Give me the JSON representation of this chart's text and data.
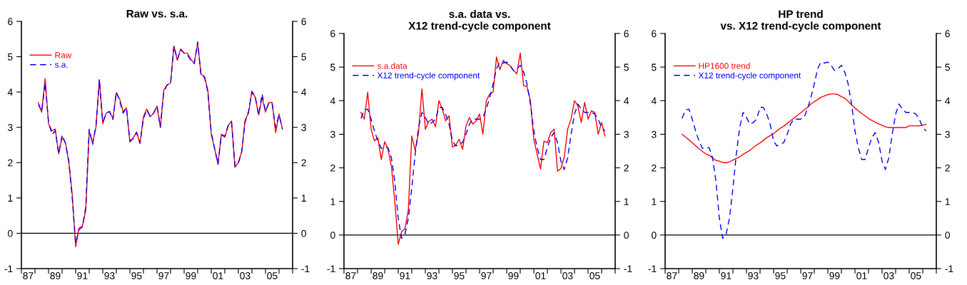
{
  "chart_data": [
    {
      "type": "line",
      "title": "Raw vs. s.a.",
      "x": [
        "1988-04",
        "1988-07",
        "1988-10",
        "1989-01",
        "1989-04",
        "1989-07",
        "1989-10",
        "1990-01",
        "1990-04",
        "1990-07",
        "1990-10",
        "1991-01",
        "1991-04",
        "1991-07",
        "1991-10",
        "1992-01",
        "1992-04",
        "1992-07",
        "1992-10",
        "1993-01",
        "1993-04",
        "1993-07",
        "1993-10",
        "1994-01",
        "1994-04",
        "1994-07",
        "1994-10",
        "1995-01",
        "1995-04",
        "1995-07",
        "1995-10",
        "1996-01",
        "1996-04",
        "1996-07",
        "1996-10",
        "1997-01",
        "1997-04",
        "1997-07",
        "1997-10",
        "1998-01",
        "1998-04",
        "1998-07",
        "1998-10",
        "1999-01",
        "1999-04",
        "1999-07",
        "1999-10",
        "2000-01",
        "2000-04",
        "2000-07",
        "2000-10",
        "2001-01",
        "2001-04",
        "2001-07",
        "2001-10",
        "2002-01",
        "2002-04",
        "2002-07",
        "2002-10",
        "2003-01",
        "2003-04",
        "2003-07",
        "2003-10",
        "2004-01",
        "2004-04",
        "2004-07",
        "2004-10",
        "2005-01",
        "2005-04",
        "2005-07",
        "2005-10",
        "2006-01",
        "2006-04"
      ],
      "series": [
        {
          "name": "Raw",
          "color": "#ff0000",
          "line_style": "solid",
          "values": [
            3.7,
            3.43,
            4.38,
            3.1,
            2.9,
            2.95,
            2.25,
            2.72,
            2.57,
            2.0,
            1.1,
            -0.38,
            0.15,
            0.2,
            0.65,
            2.9,
            2.55,
            3.0,
            4.35,
            3.1,
            3.4,
            3.45,
            3.25,
            3.98,
            3.8,
            3.45,
            3.55,
            2.58,
            2.7,
            2.87,
            2.55,
            3.3,
            3.52,
            3.3,
            3.4,
            3.6,
            3.0,
            4.05,
            4.2,
            4.25,
            5.3,
            4.9,
            5.22,
            5.1,
            5.1,
            4.92,
            4.82,
            5.38,
            4.5,
            4.45,
            4.05,
            2.8,
            2.4,
            1.95,
            2.8,
            2.72,
            3.05,
            3.18,
            1.87,
            2.0,
            2.3,
            3.2,
            3.4,
            4.03,
            3.85,
            3.35,
            3.85,
            3.43,
            3.7,
            3.7,
            2.85,
            3.38,
            2.95
          ]
        },
        {
          "name": "s.a.",
          "color": "#0000ff",
          "line_style": "dashed",
          "values": [
            3.65,
            3.45,
            4.25,
            3.15,
            2.8,
            2.9,
            2.25,
            2.78,
            2.55,
            2.05,
            1.0,
            -0.28,
            0.1,
            0.18,
            0.75,
            2.95,
            2.52,
            3.05,
            4.35,
            3.15,
            3.38,
            3.45,
            3.22,
            4.0,
            3.75,
            3.4,
            3.55,
            2.62,
            2.68,
            2.85,
            2.55,
            3.25,
            3.5,
            3.3,
            3.4,
            3.6,
            3.0,
            4.0,
            4.2,
            4.25,
            5.3,
            4.92,
            5.2,
            5.1,
            5.05,
            4.9,
            4.8,
            5.42,
            4.45,
            4.42,
            4.0,
            2.85,
            2.4,
            1.97,
            2.8,
            2.75,
            3.05,
            3.15,
            1.9,
            1.98,
            2.32,
            3.15,
            3.45,
            4.0,
            3.85,
            3.35,
            3.95,
            3.45,
            3.7,
            3.65,
            3.0,
            3.35,
            2.95
          ]
        }
      ],
      "xlim": [
        "1987",
        "2007"
      ],
      "xticks": [
        {
          "value": "1987",
          "label": null
        },
        {
          "value": "1987-07",
          "label": "87"
        },
        {
          "value": "1988",
          "label": null
        },
        {
          "value": "1989",
          "label": null
        },
        {
          "value": "1989-07",
          "label": "89"
        },
        {
          "value": "1990",
          "label": null
        },
        {
          "value": "1991",
          "label": null
        },
        {
          "value": "1991-07",
          "label": "91"
        },
        {
          "value": "1992",
          "label": null
        },
        {
          "value": "1993",
          "label": null
        },
        {
          "value": "1993-07",
          "label": "93"
        },
        {
          "value": "1994",
          "label": null
        },
        {
          "value": "1995",
          "label": null
        },
        {
          "value": "1995-07",
          "label": "95"
        },
        {
          "value": "1996",
          "label": null
        },
        {
          "value": "1997",
          "label": null
        },
        {
          "value": "1997-07",
          "label": "97"
        },
        {
          "value": "1998",
          "label": null
        },
        {
          "value": "1999",
          "label": null
        },
        {
          "value": "1999-07",
          "label": "99"
        },
        {
          "value": "2000",
          "label": null
        },
        {
          "value": "2001",
          "label": null
        },
        {
          "value": "2001-07",
          "label": "01"
        },
        {
          "value": "2002",
          "label": null
        },
        {
          "value": "2003",
          "label": null
        },
        {
          "value": "2003-07",
          "label": "03"
        },
        {
          "value": "2004",
          "label": null
        },
        {
          "value": "2005",
          "label": null
        },
        {
          "value": "2005-07",
          "label": "05"
        },
        {
          "value": "2006",
          "label": null
        },
        {
          "value": "2007",
          "label": null
        }
      ],
      "ylim": [
        -1,
        6
      ],
      "yticks": [
        -1,
        0,
        1,
        2,
        3,
        4,
        5,
        6
      ],
      "y2lim": [
        -1,
        6
      ],
      "y2ticks": [
        -1,
        0,
        1,
        2,
        3,
        4,
        5,
        6
      ],
      "ref_lines": [
        {
          "axis": "y",
          "value": 0,
          "color": "#000000"
        }
      ],
      "grid": false,
      "legend": "top left",
      "marker": "none"
    },
    {
      "type": "line",
      "title": "s.a. data vs.\nX12 trend-cycle component",
      "x": [
        "1988-04",
        "1988-07",
        "1988-10",
        "1989-01",
        "1989-04",
        "1989-07",
        "1989-10",
        "1990-01",
        "1990-04",
        "1990-07",
        "1990-10",
        "1991-01",
        "1991-04",
        "1991-07",
        "1991-10",
        "1992-01",
        "1992-04",
        "1992-07",
        "1992-10",
        "1993-01",
        "1993-04",
        "1993-07",
        "1993-10",
        "1994-01",
        "1994-04",
        "1994-07",
        "1994-10",
        "1995-01",
        "1995-04",
        "1995-07",
        "1995-10",
        "1996-01",
        "1996-04",
        "1996-07",
        "1996-10",
        "1997-01",
        "1997-04",
        "1997-07",
        "1997-10",
        "1998-01",
        "1998-04",
        "1998-07",
        "1998-10",
        "1999-01",
        "1999-04",
        "1999-07",
        "1999-10",
        "2000-01",
        "2000-04",
        "2000-07",
        "2000-10",
        "2001-01",
        "2001-04",
        "2001-07",
        "2001-10",
        "2002-01",
        "2002-04",
        "2002-07",
        "2002-10",
        "2003-01",
        "2003-04",
        "2003-07",
        "2003-10",
        "2004-01",
        "2004-04",
        "2004-07",
        "2004-10",
        "2005-01",
        "2005-04",
        "2005-07",
        "2005-10",
        "2006-01",
        "2006-04"
      ],
      "series": [
        {
          "name": "s.a.data",
          "color": "#ff0000",
          "line_style": "solid",
          "values": [
            3.65,
            3.45,
            4.25,
            3.15,
            2.8,
            2.9,
            2.25,
            2.78,
            2.55,
            2.05,
            1.0,
            -0.28,
            0.1,
            0.18,
            0.75,
            2.95,
            2.52,
            3.05,
            4.35,
            3.15,
            3.38,
            3.45,
            3.22,
            4.0,
            3.75,
            3.4,
            3.55,
            2.62,
            2.68,
            2.85,
            2.55,
            3.25,
            3.5,
            3.3,
            3.4,
            3.6,
            3.0,
            4.0,
            4.2,
            4.25,
            5.3,
            4.92,
            5.2,
            5.1,
            5.05,
            4.9,
            4.8,
            5.42,
            4.45,
            4.42,
            4.0,
            2.85,
            2.4,
            1.97,
            2.8,
            2.75,
            3.05,
            3.15,
            1.9,
            1.98,
            2.32,
            3.15,
            3.45,
            4.0,
            3.85,
            3.35,
            3.95,
            3.45,
            3.7,
            3.65,
            3.0,
            3.35,
            2.95
          ]
        },
        {
          "name": "X12 trend-cycle component",
          "color": "#0000ff",
          "line_style": "dashed",
          "values": [
            3.47,
            3.72,
            3.75,
            3.45,
            3.1,
            2.8,
            2.58,
            2.6,
            2.6,
            2.3,
            1.6,
            0.5,
            -0.1,
            0.02,
            0.5,
            1.4,
            2.4,
            3.2,
            3.65,
            3.5,
            3.3,
            3.35,
            3.45,
            3.8,
            3.8,
            3.6,
            3.3,
            2.8,
            2.65,
            2.7,
            2.75,
            3.0,
            3.3,
            3.45,
            3.45,
            3.45,
            3.5,
            3.75,
            4.1,
            4.5,
            4.95,
            5.15,
            5.12,
            5.15,
            5.05,
            4.9,
            4.95,
            5.05,
            4.85,
            4.5,
            3.9,
            3.1,
            2.6,
            2.25,
            2.25,
            2.6,
            2.9,
            3.05,
            2.75,
            2.2,
            1.95,
            2.3,
            3.0,
            3.6,
            3.9,
            3.75,
            3.65,
            3.65,
            3.65,
            3.6,
            3.45,
            3.2,
            3.1
          ]
        }
      ],
      "xlim": [
        "1987",
        "2007"
      ],
      "xticks": [
        {
          "value": "1987",
          "label": null
        },
        {
          "value": "1987-07",
          "label": "87"
        },
        {
          "value": "1988",
          "label": null
        },
        {
          "value": "1989",
          "label": null
        },
        {
          "value": "1989-07",
          "label": "89"
        },
        {
          "value": "1990",
          "label": null
        },
        {
          "value": "1991",
          "label": null
        },
        {
          "value": "1991-07",
          "label": "91"
        },
        {
          "value": "1992",
          "label": null
        },
        {
          "value": "1993",
          "label": null
        },
        {
          "value": "1993-07",
          "label": "93"
        },
        {
          "value": "1994",
          "label": null
        },
        {
          "value": "1995",
          "label": null
        },
        {
          "value": "1995-07",
          "label": "95"
        },
        {
          "value": "1996",
          "label": null
        },
        {
          "value": "1997",
          "label": null
        },
        {
          "value": "1997-07",
          "label": "97"
        },
        {
          "value": "1998",
          "label": null
        },
        {
          "value": "1999",
          "label": null
        },
        {
          "value": "1999-07",
          "label": "99"
        },
        {
          "value": "2000",
          "label": null
        },
        {
          "value": "2001",
          "label": null
        },
        {
          "value": "2001-07",
          "label": "01"
        },
        {
          "value": "2002",
          "label": null
        },
        {
          "value": "2003",
          "label": null
        },
        {
          "value": "2003-07",
          "label": "03"
        },
        {
          "value": "2004",
          "label": null
        },
        {
          "value": "2005",
          "label": null
        },
        {
          "value": "2005-07",
          "label": "05"
        },
        {
          "value": "2006",
          "label": null
        },
        {
          "value": "2007",
          "label": null
        }
      ],
      "ylim": [
        -1,
        6
      ],
      "yticks": [
        -1,
        0,
        1,
        2,
        3,
        4,
        5,
        6
      ],
      "y2lim": [
        -1,
        6
      ],
      "y2ticks": [
        -1,
        0,
        1,
        2,
        3,
        4,
        5,
        6
      ],
      "ref_lines": [
        {
          "axis": "y",
          "value": 0,
          "color": "#000000"
        }
      ],
      "grid": false,
      "legend": "top left",
      "marker": "none"
    },
    {
      "type": "line",
      "title": "HP trend\nvs. X12 trend-cycle component",
      "x": [
        "1988-04",
        "1988-07",
        "1988-10",
        "1989-01",
        "1989-04",
        "1989-07",
        "1989-10",
        "1990-01",
        "1990-04",
        "1990-07",
        "1990-10",
        "1991-01",
        "1991-04",
        "1991-07",
        "1991-10",
        "1992-01",
        "1992-04",
        "1992-07",
        "1992-10",
        "1993-01",
        "1993-04",
        "1993-07",
        "1993-10",
        "1994-01",
        "1994-04",
        "1994-07",
        "1994-10",
        "1995-01",
        "1995-04",
        "1995-07",
        "1995-10",
        "1996-01",
        "1996-04",
        "1996-07",
        "1996-10",
        "1997-01",
        "1997-04",
        "1997-07",
        "1997-10",
        "1998-01",
        "1998-04",
        "1998-07",
        "1998-10",
        "1999-01",
        "1999-04",
        "1999-07",
        "1999-10",
        "2000-01",
        "2000-04",
        "2000-07",
        "2000-10",
        "2001-01",
        "2001-04",
        "2001-07",
        "2001-10",
        "2002-01",
        "2002-04",
        "2002-07",
        "2002-10",
        "2003-01",
        "2003-04",
        "2003-07",
        "2003-10",
        "2004-01",
        "2004-04",
        "2004-07",
        "2004-10",
        "2005-01",
        "2005-04",
        "2005-07",
        "2005-10",
        "2006-01",
        "2006-04"
      ],
      "series": [
        {
          "name": "HP1600 trend",
          "color": "#ff0000",
          "line_style": "solid",
          "values": [
            3.0,
            2.92,
            2.84,
            2.75,
            2.66,
            2.57,
            2.49,
            2.42,
            2.37,
            2.3,
            2.22,
            2.2,
            2.16,
            2.15,
            2.18,
            2.23,
            2.28,
            2.33,
            2.4,
            2.46,
            2.52,
            2.6,
            2.68,
            2.74,
            2.82,
            2.9,
            2.96,
            3.02,
            3.1,
            3.18,
            3.24,
            3.32,
            3.4,
            3.48,
            3.56,
            3.64,
            3.72,
            3.8,
            3.9,
            3.97,
            4.03,
            4.1,
            4.14,
            4.18,
            4.2,
            4.2,
            4.18,
            4.12,
            4.07,
            3.98,
            3.88,
            3.78,
            3.7,
            3.62,
            3.55,
            3.47,
            3.41,
            3.36,
            3.31,
            3.27,
            3.22,
            3.2,
            3.2,
            3.2,
            3.2,
            3.2,
            3.2,
            3.25,
            3.25,
            3.25,
            3.25,
            3.27,
            3.3
          ]
        },
        {
          "name": "X12 trend-cycle component",
          "color": "#0000ff",
          "line_style": "dashed",
          "values": [
            3.47,
            3.72,
            3.75,
            3.45,
            3.1,
            2.8,
            2.58,
            2.6,
            2.6,
            2.3,
            1.6,
            0.5,
            -0.1,
            0.02,
            0.5,
            1.4,
            2.4,
            3.2,
            3.65,
            3.5,
            3.3,
            3.35,
            3.45,
            3.8,
            3.8,
            3.6,
            3.3,
            2.8,
            2.65,
            2.7,
            2.75,
            3.0,
            3.3,
            3.45,
            3.45,
            3.45,
            3.5,
            3.75,
            4.1,
            4.5,
            4.95,
            5.15,
            5.12,
            5.15,
            5.05,
            4.9,
            4.95,
            5.05,
            4.85,
            4.5,
            3.9,
            3.1,
            2.6,
            2.25,
            2.25,
            2.6,
            2.9,
            3.05,
            2.75,
            2.2,
            1.95,
            2.3,
            3.0,
            3.6,
            3.9,
            3.75,
            3.65,
            3.65,
            3.65,
            3.6,
            3.45,
            3.2,
            3.1
          ]
        }
      ],
      "xlim": [
        "1987",
        "2007"
      ],
      "xticks": [
        {
          "value": "1987",
          "label": null
        },
        {
          "value": "1987-07",
          "label": "87"
        },
        {
          "value": "1988",
          "label": null
        },
        {
          "value": "1989",
          "label": null
        },
        {
          "value": "1989-07",
          "label": "89"
        },
        {
          "value": "1990",
          "label": null
        },
        {
          "value": "1991",
          "label": null
        },
        {
          "value": "1991-07",
          "label": "91"
        },
        {
          "value": "1992",
          "label": null
        },
        {
          "value": "1993",
          "label": null
        },
        {
          "value": "1993-07",
          "label": "93"
        },
        {
          "value": "1994",
          "label": null
        },
        {
          "value": "1995",
          "label": null
        },
        {
          "value": "1995-07",
          "label": "95"
        },
        {
          "value": "1996",
          "label": null
        },
        {
          "value": "1997",
          "label": null
        },
        {
          "value": "1997-07",
          "label": "97"
        },
        {
          "value": "1998",
          "label": null
        },
        {
          "value": "1999",
          "label": null
        },
        {
          "value": "1999-07",
          "label": "99"
        },
        {
          "value": "2000",
          "label": null
        },
        {
          "value": "2001",
          "label": null
        },
        {
          "value": "2001-07",
          "label": "01"
        },
        {
          "value": "2002",
          "label": null
        },
        {
          "value": "2003",
          "label": null
        },
        {
          "value": "2003-07",
          "label": "03"
        },
        {
          "value": "2004",
          "label": null
        },
        {
          "value": "2005",
          "label": null
        },
        {
          "value": "2005-07",
          "label": "05"
        },
        {
          "value": "2006",
          "label": null
        },
        {
          "value": "2007",
          "label": null
        }
      ],
      "ylim": [
        -1,
        6
      ],
      "yticks": [
        -1,
        0,
        1,
        2,
        3,
        4,
        5,
        6
      ],
      "y2lim": [
        -1,
        6
      ],
      "y2ticks": [
        -1,
        0,
        1,
        2,
        3,
        4,
        5,
        6
      ],
      "ref_lines": [
        {
          "axis": "y",
          "value": 0,
          "color": "#000000"
        }
      ],
      "grid": false,
      "legend": "top left",
      "marker": "none"
    }
  ]
}
